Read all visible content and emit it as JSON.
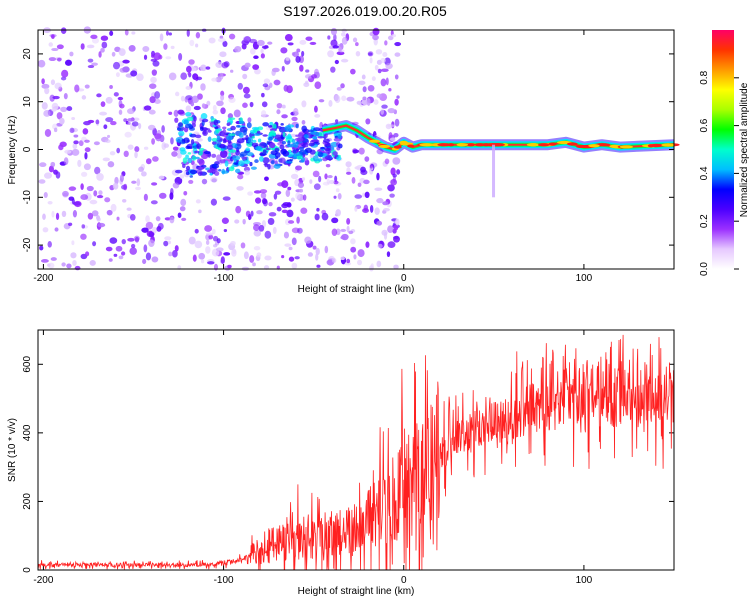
{
  "title": "S197.2026.019.00.20.R05",
  "chart_data": [
    {
      "type": "heatmap",
      "name": "spectrogram",
      "xlabel": "Height of straight line (km)",
      "ylabel": "Frequency (Hz)",
      "xlim": [
        -203,
        150
      ],
      "ylim": [
        -25,
        25
      ],
      "xticks": [
        -200,
        -100,
        0,
        100
      ],
      "yticks": [
        -20,
        -10,
        0,
        10,
        20
      ],
      "colorbar": {
        "label": "Normalized spectral amplitude",
        "range": [
          0,
          1
        ],
        "ticks": [
          "0.0",
          "0.2",
          "0.4",
          "0.6",
          "0.8"
        ],
        "colors": [
          "#ffffff",
          "#e6c8ff",
          "#9b30ff",
          "#4b00ff",
          "#0000ff",
          "#00bfff",
          "#00ffcc",
          "#00ff00",
          "#aaff00",
          "#ffff00",
          "#ff9900",
          "#ff3300",
          "#ff0066"
        ]
      },
      "ridge": {
        "x": [
          -45,
          -38,
          -32,
          -26,
          -20,
          -15,
          -10,
          -5,
          0,
          5,
          10,
          20,
          40,
          60,
          80,
          90,
          100,
          110,
          120,
          150
        ],
        "freq": [
          4.0,
          4.5,
          5.0,
          4.0,
          2.5,
          1.5,
          0.5,
          0.0,
          1.5,
          0.5,
          1.0,
          1.0,
          1.0,
          1.0,
          1.0,
          1.5,
          0.5,
          1.0,
          0.5,
          1.0
        ]
      }
    },
    {
      "type": "line",
      "name": "snr",
      "xlabel": "Height of straight line (km)",
      "ylabel": "SNR (10 * v/v)",
      "xlim": [
        -203,
        150
      ],
      "ylim": [
        0,
        700
      ],
      "xticks": [
        -200,
        -100,
        0,
        100
      ],
      "yticks": [
        0,
        200,
        400,
        600
      ],
      "color": "#ff2020",
      "series": [
        {
          "name": "SNR envelope",
          "x": [
            -203,
            -150,
            -110,
            -95,
            -85,
            -75,
            -60,
            -45,
            -30,
            -20,
            -10,
            0,
            10,
            20,
            30,
            40,
            50,
            60,
            65,
            70,
            80,
            90,
            100,
            110,
            120,
            130,
            140,
            150
          ],
          "y": [
            15,
            15,
            15,
            25,
            40,
            70,
            90,
            100,
            120,
            150,
            180,
            250,
            300,
            340,
            380,
            410,
            430,
            440,
            460,
            470,
            480,
            480,
            470,
            490,
            490,
            490,
            500,
            490
          ]
        }
      ]
    }
  ]
}
